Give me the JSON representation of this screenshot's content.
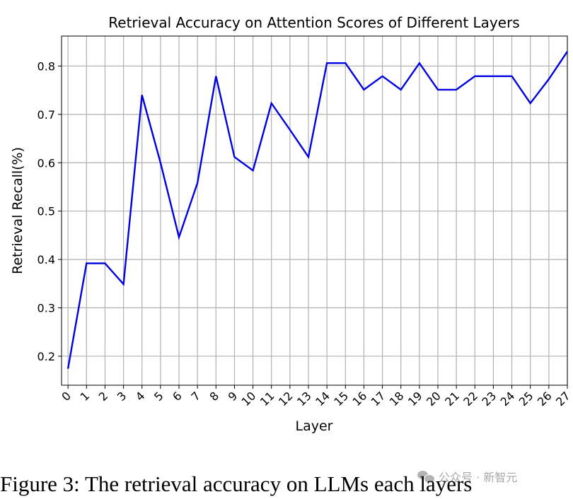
{
  "chart_data": {
    "type": "line",
    "title": "Retrieval Accuracy on Attention Scores of Different Layers",
    "xlabel": "Layer",
    "ylabel": "Retrieval Recall(%)",
    "x": [
      0,
      1,
      2,
      3,
      4,
      5,
      6,
      7,
      8,
      9,
      10,
      11,
      12,
      13,
      14,
      15,
      16,
      17,
      18,
      19,
      20,
      21,
      22,
      23,
      24,
      25,
      26,
      27
    ],
    "series": [
      {
        "values": [
          0.174,
          0.392,
          0.392,
          0.349,
          0.74,
          0.6,
          0.446,
          0.558,
          0.779,
          0.612,
          0.584,
          0.723,
          0.668,
          0.612,
          0.806,
          0.806,
          0.751,
          0.779,
          0.751,
          0.806,
          0.751,
          0.751,
          0.779,
          0.779,
          0.779,
          0.723,
          0.773,
          0.83
        ],
        "color": "#0000e0"
      }
    ],
    "xlim": [
      -0.35,
      27
    ],
    "ylim": [
      0.14,
      0.862
    ],
    "yticks": [
      0.2,
      0.3,
      0.4,
      0.5,
      0.6,
      0.7,
      0.8
    ],
    "ytick_labels": [
      "0.2",
      "0.3",
      "0.4",
      "0.5",
      "0.6",
      "0.7",
      "0.8"
    ],
    "xtick_labels": [
      "0",
      "1",
      "2",
      "3",
      "4",
      "5",
      "6",
      "7",
      "8",
      "9",
      "10",
      "11",
      "12",
      "13",
      "14",
      "15",
      "16",
      "17",
      "18",
      "19",
      "20",
      "21",
      "22",
      "23",
      "24",
      "25",
      "26",
      "27"
    ],
    "grid": true,
    "legend": "none"
  },
  "caption": "Figure 3: The retrieval accuracy on LLMs each layers",
  "watermark": "公众号 · 新智元"
}
